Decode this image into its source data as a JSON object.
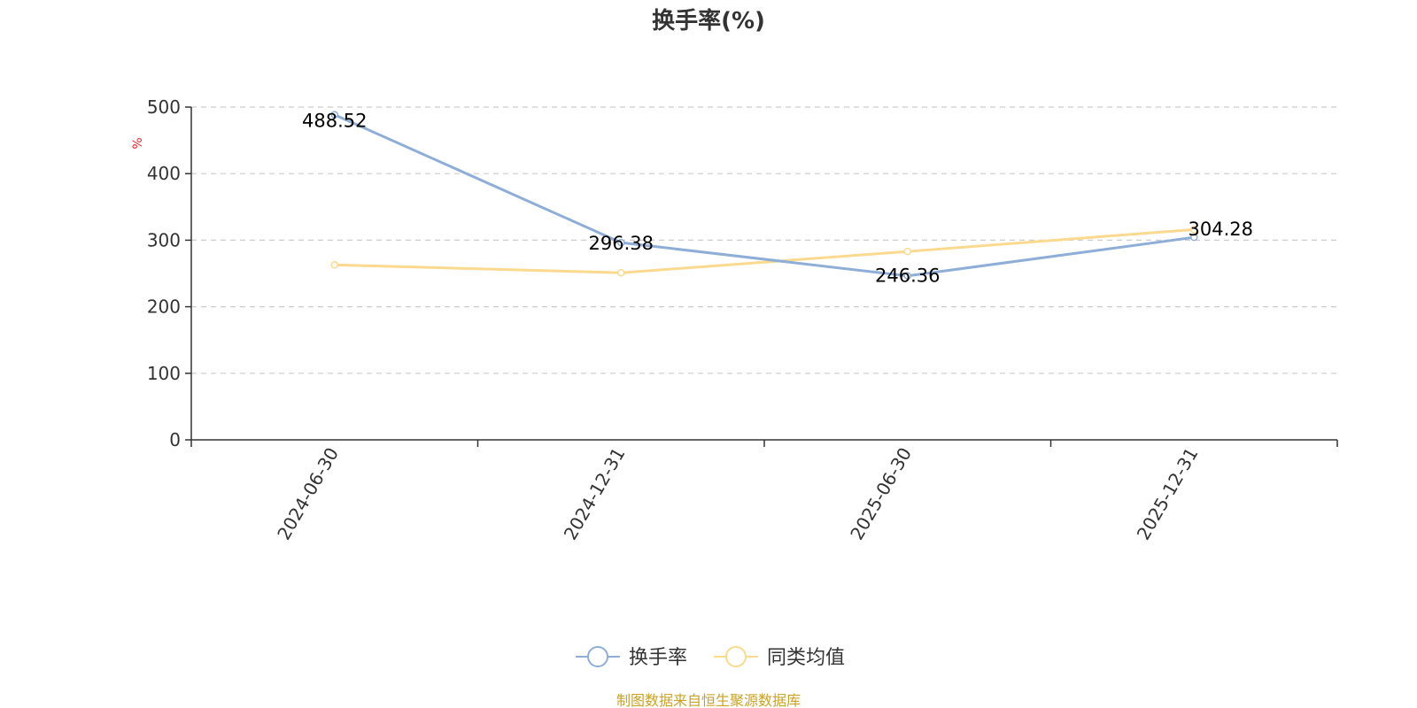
{
  "chart_data": {
    "type": "line",
    "title": "换手率(%)",
    "ylabel": "%",
    "x": [
      "2024-06-30",
      "2024-12-31",
      "2025-06-30",
      "2025-12-31"
    ],
    "ylim": [
      0,
      500
    ],
    "yticks": [
      0,
      100,
      200,
      300,
      400,
      500
    ],
    "grid": true,
    "legend_position": "bottom-center",
    "series": [
      {
        "name": "换手率",
        "values": [
          488.52,
          296.38,
          246.36,
          304.28
        ],
        "color": "#8eaed8",
        "labels": [
          "488.52",
          "296.38",
          "246.36",
          "304.28"
        ]
      },
      {
        "name": "同类均值",
        "values": [
          263,
          251,
          283,
          316
        ],
        "color": "#fbd98e"
      }
    ]
  },
  "source_text": "制图数据来自恒生聚源数据库",
  "colors": {
    "ylabel": "#e8262a",
    "source": "#c9a227",
    "axis": "#333333",
    "grid": "#cccccc"
  }
}
